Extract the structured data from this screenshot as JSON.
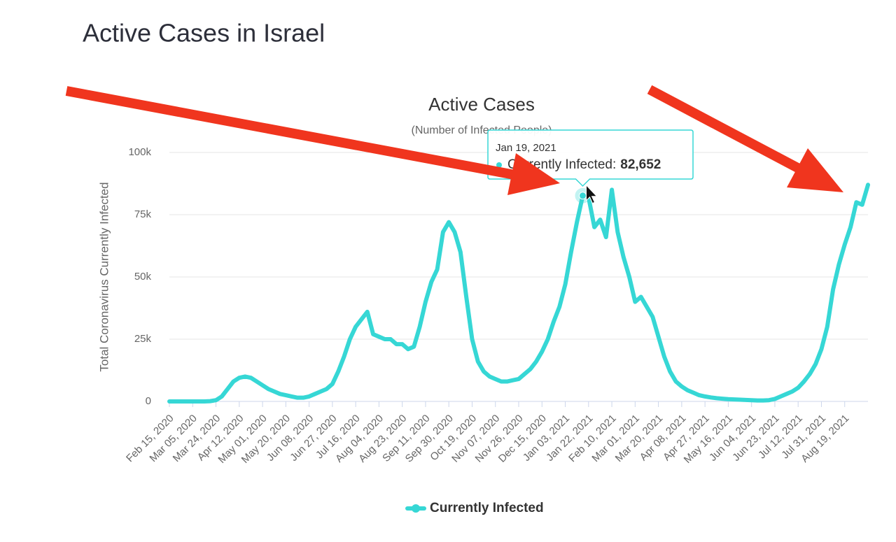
{
  "page_title": "Active Cases in Israel",
  "chart_data": {
    "type": "line",
    "title": "Active Cases",
    "subtitle": "(Number of Infected People)",
    "y_label": "Total Coronavirus Currently Infected",
    "categories": [
      "Feb 15, 2020",
      null,
      null,
      null,
      "Mar 05, 2020",
      null,
      null,
      null,
      "Mar 24, 2020",
      null,
      null,
      null,
      "Apr 12, 2020",
      null,
      null,
      null,
      "May 01, 2020",
      null,
      null,
      null,
      "May 20, 2020",
      null,
      null,
      null,
      "Jun 08, 2020",
      null,
      null,
      null,
      "Jun 27, 2020",
      null,
      null,
      null,
      "Jul 16, 2020",
      null,
      null,
      null,
      "Aug 04, 2020",
      null,
      null,
      null,
      "Aug 23, 2020",
      null,
      null,
      null,
      "Sep 11, 2020",
      null,
      null,
      null,
      "Sep 30, 2020",
      null,
      null,
      null,
      "Oct 19, 2020",
      null,
      null,
      null,
      "Nov 07, 2020",
      null,
      null,
      null,
      "Nov 26, 2020",
      null,
      null,
      null,
      "Dec 15, 2020",
      null,
      null,
      null,
      "Jan 03, 2021",
      null,
      null,
      null,
      "Jan 22, 2021",
      null,
      null,
      null,
      "Feb 10, 2021",
      null,
      null,
      null,
      "Mar 01, 2021",
      null,
      null,
      null,
      "Mar 20, 2021",
      null,
      null,
      null,
      "Apr 08, 2021",
      null,
      null,
      null,
      "Apr 27, 2021",
      null,
      null,
      null,
      "May 16, 2021",
      null,
      null,
      null,
      "Jun 04, 2021",
      null,
      null,
      null,
      "Jun 23, 2021",
      null,
      null,
      null,
      "Jul 12, 2021",
      null,
      null,
      null,
      "Jul 31, 2021",
      null,
      null,
      null,
      "Aug 19, 2021",
      null,
      null,
      null,
      null
    ],
    "series": [
      {
        "name": "Currently Infected",
        "color": "#36d7d5",
        "values": [
          0,
          0,
          0,
          0,
          0,
          0,
          0,
          100,
          500,
          2000,
          5000,
          8000,
          9500,
          10000,
          9500,
          8000,
          6500,
          5000,
          4000,
          3000,
          2500,
          2000,
          1500,
          1500,
          2000,
          3000,
          4000,
          5000,
          7000,
          12000,
          18000,
          25000,
          30000,
          33000,
          36000,
          27000,
          26000,
          25000,
          25000,
          23000,
          23000,
          21000,
          22000,
          30000,
          40000,
          48000,
          53000,
          68000,
          72000,
          68000,
          60000,
          42000,
          25000,
          16000,
          12000,
          10000,
          9000,
          8000,
          8000,
          8500,
          9000,
          11000,
          13000,
          16000,
          20000,
          25000,
          32000,
          38000,
          47000,
          60000,
          72000,
          82652,
          82000,
          70000,
          73000,
          66000,
          85000,
          68000,
          58000,
          50000,
          40000,
          42000,
          38000,
          34000,
          26000,
          18000,
          12000,
          8000,
          6000,
          4500,
          3500,
          2500,
          2000,
          1600,
          1300,
          1100,
          900,
          800,
          700,
          600,
          500,
          400,
          400,
          500,
          1000,
          2000,
          3000,
          4000,
          5500,
          8000,
          11000,
          15000,
          21000,
          30000,
          45000,
          55000,
          63000,
          70000,
          80000,
          79000,
          87000
        ]
      }
    ],
    "ylim": [
      0,
      100000
    ],
    "yticks": [
      0,
      {
        "value": 25000,
        "label": "25k"
      },
      {
        "value": 50000,
        "label": "50k"
      },
      {
        "value": 75000,
        "label": "75k"
      },
      {
        "value": 100000,
        "label": "100k"
      }
    ],
    "grid": true,
    "tooltip": {
      "date": "Jan 19, 2021",
      "label": "Currently Infected:",
      "index": 71,
      "value": 82652,
      "value_label": "82,652"
    }
  }
}
